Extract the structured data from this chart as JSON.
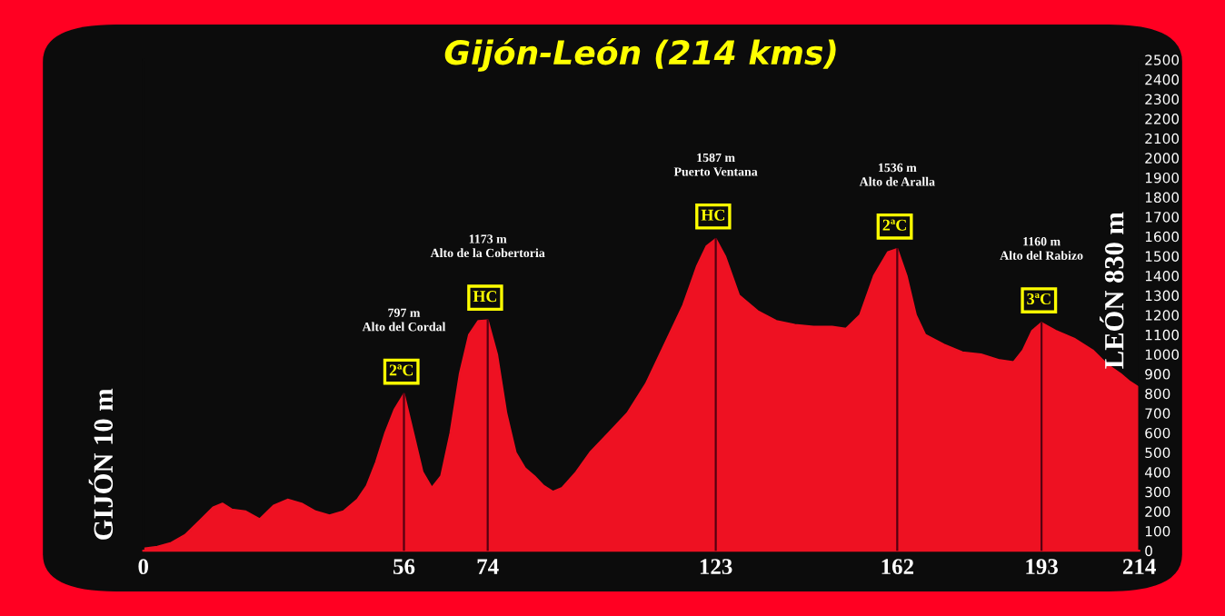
{
  "chart_data": {
    "type": "area",
    "title": "Gijón-León (214 kms)",
    "ylabel": "GIJÓN 10 m",
    "y2label": "LEÓN 830 m",
    "x": [
      0,
      3,
      6,
      9,
      12,
      15,
      17,
      19,
      22,
      25,
      28,
      31,
      34,
      37,
      40,
      43,
      46,
      48,
      50,
      52,
      54,
      56,
      58,
      60,
      62,
      64,
      66,
      68,
      70,
      72,
      74,
      76,
      78,
      80,
      82,
      84,
      86,
      88,
      90,
      93,
      96,
      100,
      104,
      108,
      112,
      116,
      119,
      121,
      123,
      125,
      128,
      132,
      136,
      140,
      144,
      148,
      151,
      154,
      157,
      160,
      162,
      164,
      166,
      168,
      172,
      176,
      180,
      184,
      187,
      189,
      191,
      193,
      196,
      200,
      204,
      207,
      210,
      212,
      214
    ],
    "series": [
      {
        "color": "#ee1122",
        "values": [
          10,
          20,
          40,
          80,
          150,
          220,
          240,
          210,
          200,
          160,
          230,
          260,
          240,
          200,
          180,
          200,
          260,
          330,
          450,
          600,
          720,
          797,
          600,
          400,
          320,
          380,
          600,
          900,
          1100,
          1170,
          1173,
          1000,
          700,
          500,
          420,
          380,
          330,
          300,
          320,
          400,
          500,
          600,
          700,
          850,
          1050,
          1250,
          1450,
          1550,
          1587,
          1500,
          1300,
          1220,
          1170,
          1150,
          1140,
          1140,
          1130,
          1200,
          1400,
          1520,
          1536,
          1400,
          1200,
          1100,
          1050,
          1010,
          1000,
          970,
          960,
          1020,
          1120,
          1160,
          1120,
          1080,
          1020,
          950,
          900,
          860,
          830
        ]
      }
    ],
    "xlim": [
      0,
      214
    ],
    "xticks": [
      0,
      56,
      74,
      123,
      162,
      193,
      214
    ],
    "ylim": [
      0,
      2500
    ],
    "yticks": [
      0,
      100,
      200,
      300,
      400,
      500,
      600,
      700,
      800,
      900,
      1000,
      1100,
      1200,
      1300,
      1400,
      1500,
      1600,
      1700,
      1800,
      1900,
      2000,
      2100,
      2200,
      2300,
      2400,
      2500
    ],
    "grid": false,
    "annotations": [
      "797 m\nAlto del Cordal",
      {
        "text": "2ªC",
        "x": 56,
        "y": 797
      },
      "1173 m\nAlto de la Cobertoria",
      {
        "text": "HC",
        "x": 74,
        "y": 1173
      },
      "1587 m\nPuerto Ventana",
      {
        "text": "HC",
        "x": 123,
        "y": 1587
      },
      "1536 m\nAlto de Aralla",
      {
        "text": "2ªC",
        "x": 162,
        "y": 1536
      },
      "1160 m\nAlto del Rabizo",
      {
        "text": "3ªC",
        "x": 193,
        "y": 1160
      }
    ]
  }
}
